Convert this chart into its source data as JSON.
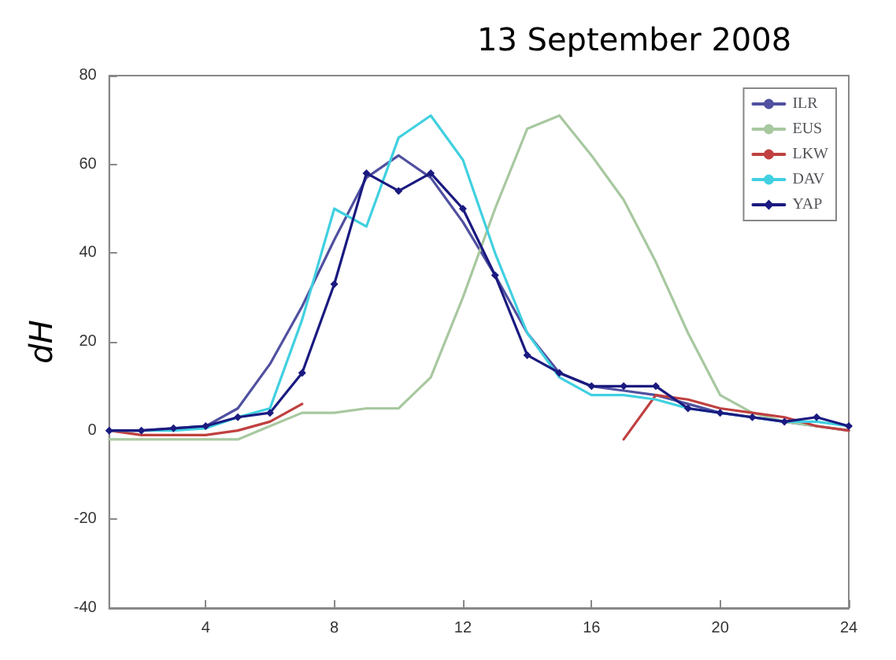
{
  "chart_data": {
    "type": "line",
    "title": "13 September 2008",
    "ylabel": "dH",
    "x": [
      1,
      2,
      3,
      4,
      5,
      6,
      7,
      8,
      9,
      10,
      11,
      12,
      13,
      14,
      15,
      16,
      17,
      18,
      19,
      20,
      21,
      22,
      23,
      24
    ],
    "series": [
      {
        "name": "ILR",
        "color": "#5050a0",
        "values": [
          0,
          0,
          0.5,
          1,
          5,
          15,
          28,
          43,
          57,
          62,
          57,
          47,
          35,
          22,
          13,
          10,
          9,
          8,
          6,
          4,
          3,
          2,
          1,
          0
        ]
      },
      {
        "name": "EUS",
        "color": "#a8c8a0",
        "values": [
          -2,
          -2,
          -2,
          -2,
          -2,
          1,
          4,
          4,
          5,
          5,
          12,
          30,
          50,
          68,
          71,
          62,
          52,
          38,
          22,
          8,
          4,
          2,
          1,
          0
        ]
      },
      {
        "name": "LKW",
        "color": "#c04040",
        "values": [
          0,
          -1,
          -1,
          -1,
          0,
          2,
          6,
          null,
          null,
          null,
          null,
          null,
          null,
          null,
          null,
          null,
          -2,
          8,
          7,
          5,
          4,
          3,
          1,
          0
        ]
      },
      {
        "name": "DAV",
        "color": "#40d0e0",
        "values": [
          0,
          0,
          0,
          0.5,
          3,
          5,
          25,
          50,
          46,
          66,
          71,
          61,
          40,
          22,
          12,
          8,
          8,
          7,
          5,
          4,
          3,
          2,
          2,
          1
        ]
      },
      {
        "name": "YAP",
        "color": "#1a1a80",
        "marker": "diamond",
        "values": [
          0,
          0,
          0.5,
          1,
          3,
          4,
          13,
          33,
          58,
          54,
          58,
          50,
          35,
          17,
          13,
          10,
          10,
          10,
          5,
          4,
          3,
          2,
          3,
          1
        ]
      }
    ],
    "xlim": [
      1,
      24
    ],
    "xticks": [
      4,
      8,
      12,
      16,
      20,
      24
    ],
    "ylim": [
      -40,
      80
    ],
    "yticks": [
      -40,
      -20,
      0,
      20,
      40,
      60,
      80
    ],
    "grid": false,
    "legend": "top right"
  }
}
